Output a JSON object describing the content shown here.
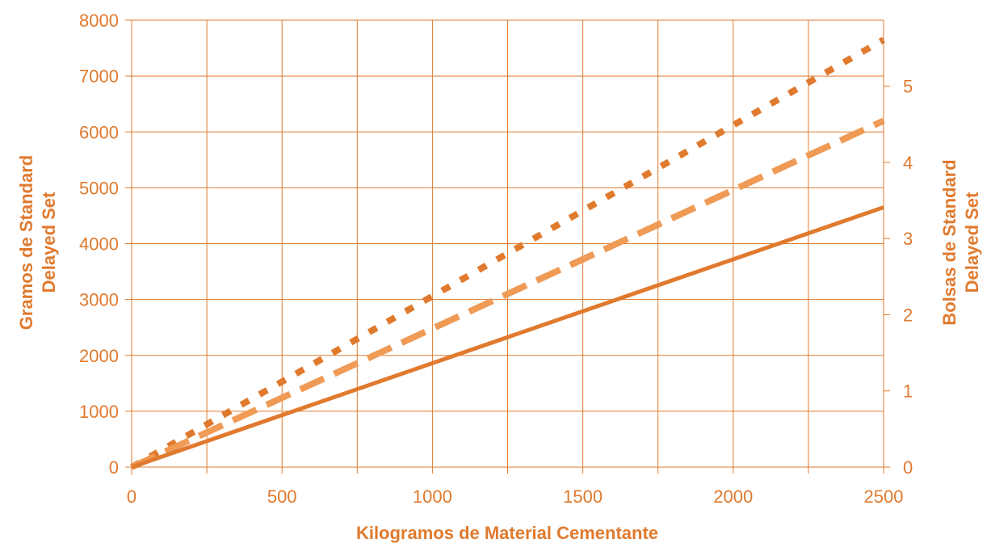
{
  "chart_data": {
    "type": "line",
    "xlabel": "Kilogramos de Material Cementante",
    "ylabel_left": [
      "Gramos de Standard",
      "Delayed Set"
    ],
    "ylabel_right": [
      "Bolsas de Standard",
      "Delayed Set"
    ],
    "x_ticks": [
      "0",
      "500",
      "1000",
      "1500",
      "2000",
      "2500"
    ],
    "y_left_ticks": [
      "0",
      "1000",
      "2000",
      "3000",
      "4000",
      "5000",
      "6000",
      "7000",
      "8000"
    ],
    "y_right_ticks": [
      "0",
      "1",
      "2",
      "3",
      "4",
      "5"
    ],
    "xlim": [
      0,
      2500
    ],
    "ylim_left": [
      0,
      8000
    ],
    "ylim_right": [
      0,
      5.867
    ],
    "grid": true,
    "series": [
      {
        "style": "dotted",
        "color": "#E07A2E",
        "x": [
          0,
          2500
        ],
        "y": [
          0,
          7650
        ]
      },
      {
        "style": "dashed",
        "color": "#EF9A55",
        "x": [
          0,
          2500
        ],
        "y": [
          0,
          6200
        ]
      },
      {
        "style": "solid",
        "color": "#E07A2E",
        "x": [
          0,
          2500
        ],
        "y": [
          0,
          4650
        ]
      }
    ]
  }
}
